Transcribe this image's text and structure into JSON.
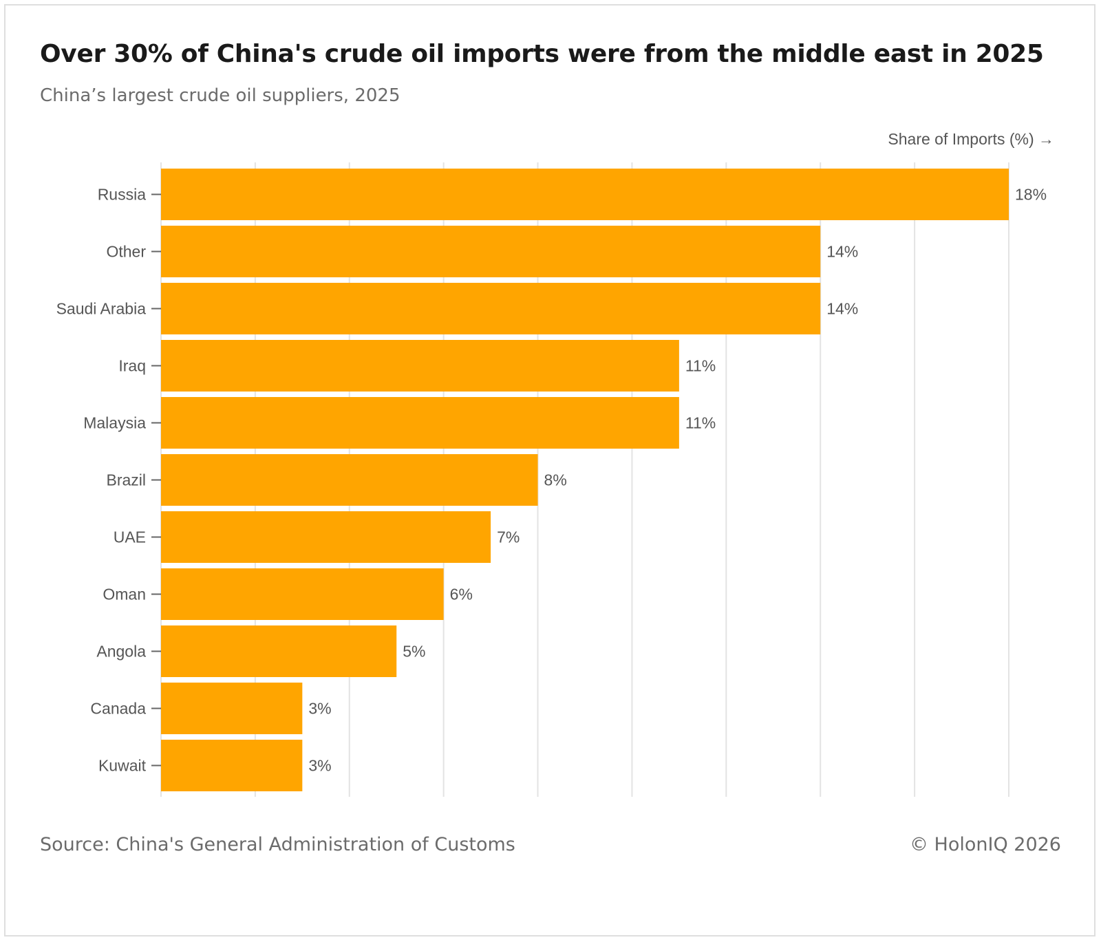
{
  "chart_data": {
    "type": "bar",
    "orientation": "horizontal",
    "title": "Over 30% of China's crude oil imports were from the middle east in 2025",
    "subtitle": "China’s largest crude oil suppliers, 2025",
    "xlabel": "Share of Imports (%) →",
    "ylabel": "",
    "xlim": [
      0,
      18
    ],
    "grid": true,
    "categories": [
      "Russia",
      "Other",
      "Saudi Arabia",
      "Iraq",
      "Malaysia",
      "Brazil",
      "UAE",
      "Oman",
      "Angola",
      "Canada",
      "Kuwait"
    ],
    "values": [
      18,
      14,
      14,
      11,
      11,
      8,
      7,
      6,
      5,
      3,
      3
    ],
    "value_labels": [
      "18%",
      "14%",
      "14%",
      "11%",
      "11%",
      "8%",
      "7%",
      "6%",
      "5%",
      "3%",
      "3%"
    ],
    "bar_color": "#FFA500"
  },
  "footer": {
    "source": "Source: China's General Administration of Customs",
    "copyright": "© HolonIQ 2026"
  },
  "colors": {
    "bar": "#FFA500",
    "grid": "#e3e3e3",
    "text": "#555555"
  }
}
